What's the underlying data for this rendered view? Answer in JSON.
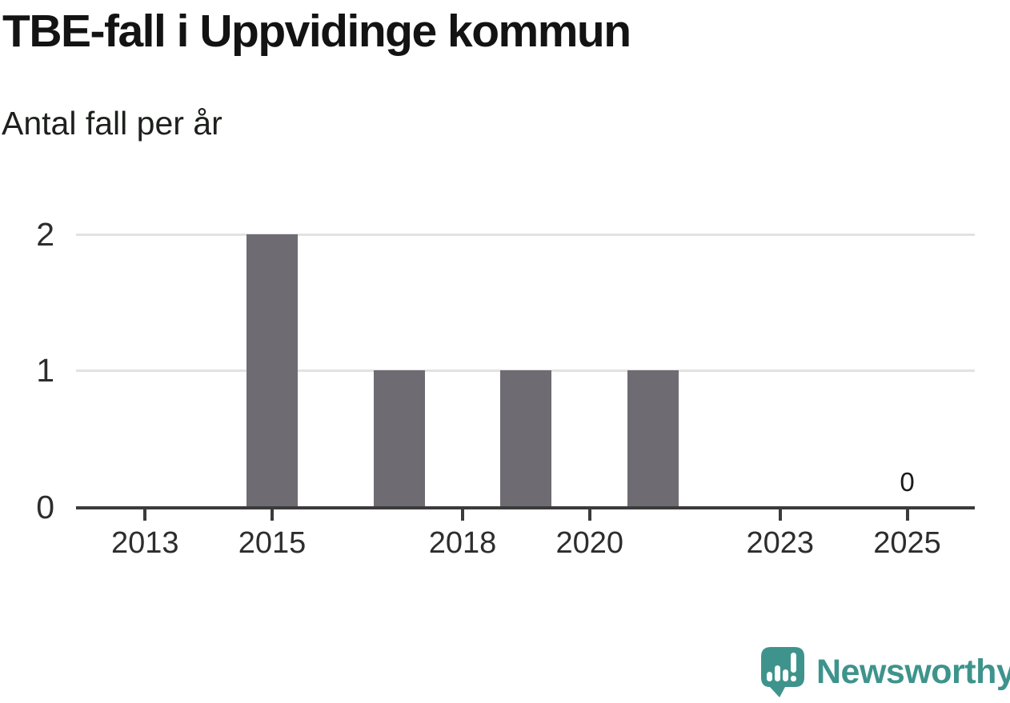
{
  "header": {
    "title": "TBE-fall i Uppvidinge kommun",
    "subtitle": "Antal fall per år"
  },
  "chart_data": {
    "type": "bar",
    "title": "TBE-fall i Uppvidinge kommun",
    "subtitle": "Antal fall per år",
    "categories": [
      2012,
      2013,
      2014,
      2015,
      2016,
      2017,
      2018,
      2019,
      2020,
      2021,
      2022,
      2023,
      2024,
      2025
    ],
    "values": [
      0,
      0,
      0,
      2,
      0,
      1,
      0,
      1,
      0,
      1,
      0,
      0,
      0,
      0
    ],
    "x_tick_labels": [
      "2013",
      "2015",
      "2018",
      "2020",
      "2023",
      "2025"
    ],
    "y_tick_labels": [
      "0",
      "1",
      "2"
    ],
    "ylim": [
      0,
      2
    ],
    "xlabel": "",
    "ylabel": "Antal fall per år",
    "grid": "horizontal-light",
    "legend": "none",
    "bar_color": "#6e6b72",
    "value_annotations": [
      {
        "year": 2025,
        "label": "0"
      }
    ]
  },
  "branding": {
    "name": "Newsworthy",
    "color": "#3e948c",
    "icon": "newsworthy-speech-bubble-bar-chart-icon"
  }
}
